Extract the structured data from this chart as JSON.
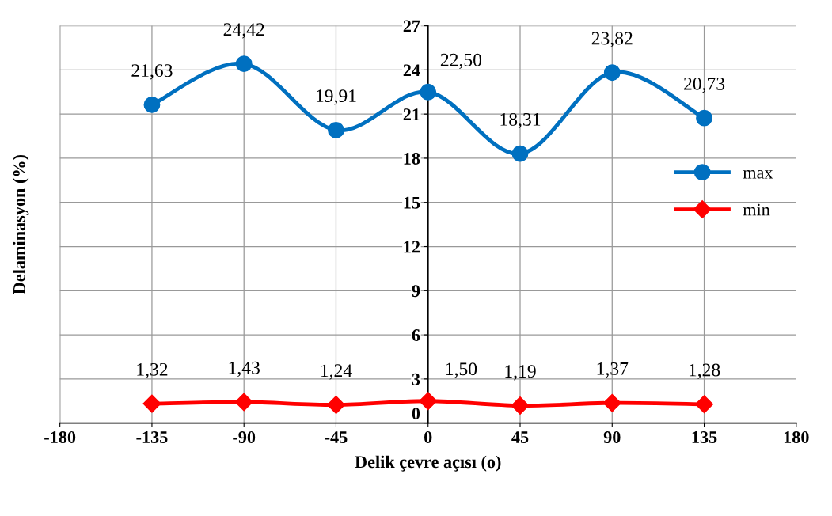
{
  "chart_data": {
    "type": "line",
    "xlabel": "Delik çevre açısı (o)",
    "ylabel": "Delaminasyon (%)",
    "x": [
      -135,
      -90,
      -45,
      0,
      45,
      90,
      135
    ],
    "xlim": [
      -180,
      180
    ],
    "xticks": [
      -180,
      -135,
      -90,
      -45,
      0,
      45,
      90,
      135,
      180
    ],
    "ylim": [
      0,
      27
    ],
    "yticks": [
      0,
      3,
      6,
      9,
      12,
      15,
      18,
      21,
      24,
      27
    ],
    "grid": true,
    "legend": "right",
    "series": [
      {
        "name": "max",
        "color": "#0070c0",
        "marker": "circle",
        "values": [
          21.63,
          24.42,
          19.91,
          22.5,
          18.31,
          23.82,
          20.73
        ],
        "value_labels": [
          "21,63",
          "24,42",
          "19,91",
          "22,50",
          "18,31",
          "23,82",
          "20,73"
        ]
      },
      {
        "name": "min",
        "color": "#ff0000",
        "marker": "diamond",
        "values": [
          1.32,
          1.43,
          1.24,
          1.5,
          1.19,
          1.37,
          1.28
        ],
        "value_labels": [
          "1,32",
          "1,43",
          "1,24",
          "1,50",
          "1,19",
          "1,37",
          "1,28"
        ]
      }
    ]
  }
}
